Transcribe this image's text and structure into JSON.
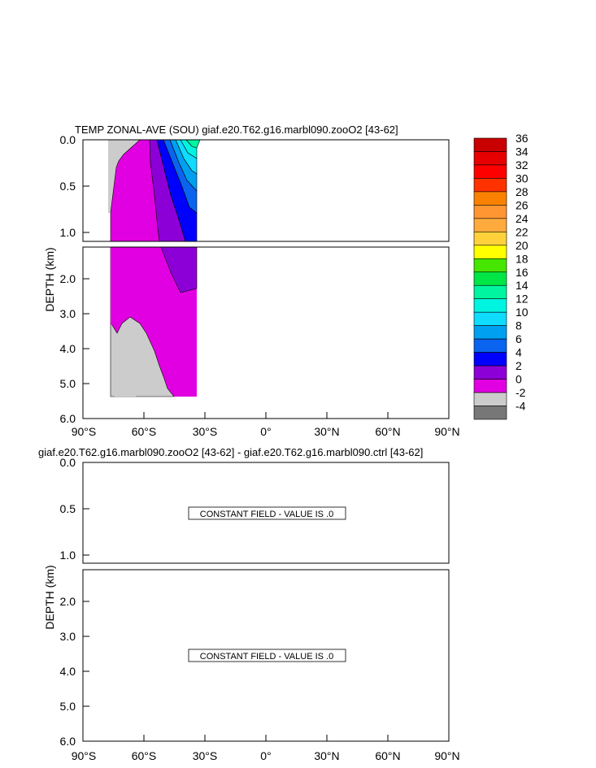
{
  "chart_data": [
    {
      "type": "contour",
      "title": "TEMP ZONAL-AVE (SOU) giaf.e20.T62.g16.marbl090.zooO2 [43-62]",
      "ylabel": "DEPTH (km)",
      "xlabel": "",
      "x_ticks": [
        "90°S",
        "60°S",
        "30°S",
        "0°",
        "30°N",
        "60°N",
        "90°N"
      ],
      "x_range": [
        -90,
        90
      ],
      "y_ticks_upper": [
        "0.0",
        "0.5",
        "1.0"
      ],
      "y_range_upper": [
        0,
        1.1
      ],
      "y_ticks_lower": [
        "2.0",
        "3.0",
        "4.0",
        "5.0",
        "6.0"
      ],
      "y_range_lower": [
        1.1,
        6.0
      ],
      "data_extent_lat": [
        -78,
        -34
      ],
      "data_extent_depth": [
        0,
        5.4
      ],
      "regions": [
        {
          "name": "land",
          "level": "missing",
          "color": "#cccccc"
        },
        {
          "name": "magenta",
          "level": "0 to 2",
          "color": "#e100e1"
        },
        {
          "name": "purple",
          "level": "2 to 4",
          "color": "#8c00d7"
        },
        {
          "name": "blue",
          "level": "4 to 6",
          "color": "#0000ff"
        },
        {
          "name": "blue2",
          "level": "6 to 8",
          "color": "#0a64f0"
        },
        {
          "name": "lightblue",
          "level": "8 to 10",
          "color": "#00a0f0"
        },
        {
          "name": "cyan",
          "level": "10 to 12",
          "color": "#0fdcff"
        },
        {
          "name": "teal",
          "level": "12 to 14",
          "color": "#00f5e1"
        },
        {
          "name": "green",
          "level": "14 to 16",
          "color": "#00f5a0"
        }
      ]
    },
    {
      "type": "contour",
      "title": "giaf.e20.T62.g16.marbl090.zooO2 [43-62] - giaf.e20.T62.g16.marbl090.ctrl [43-62]",
      "ylabel": "DEPTH (km)",
      "x_ticks": [
        "90°S",
        "60°S",
        "30°S",
        "0°",
        "30°N",
        "60°N",
        "90°N"
      ],
      "y_ticks_upper": [
        "0.0",
        "0.5",
        "1.0"
      ],
      "y_ticks_lower": [
        "2.0",
        "3.0",
        "4.0",
        "5.0",
        "6.0"
      ],
      "message_upper": "CONSTANT FIELD - VALUE IS .0",
      "message_lower": "CONSTANT FIELD - VALUE IS .0"
    }
  ],
  "colorbar": {
    "labels": [
      "36",
      "34",
      "32",
      "30",
      "28",
      "26",
      "24",
      "22",
      "20",
      "18",
      "16",
      "14",
      "12",
      "10",
      "8",
      "6",
      "4",
      "2",
      "0",
      "-2",
      "-4"
    ],
    "colors": [
      "#c80000",
      "#e60000",
      "#ff0000",
      "#ff3200",
      "#fa8200",
      "#ff9632",
      "#ffaa3c",
      "#ffd23c",
      "#ffff00",
      "#46e600",
      "#00e646",
      "#00f5a0",
      "#00f5e1",
      "#0fdcff",
      "#00a0f0",
      "#0a64f0",
      "#0000ff",
      "#8c00d7",
      "#e100e1",
      "#cccccc",
      "#777777"
    ]
  }
}
